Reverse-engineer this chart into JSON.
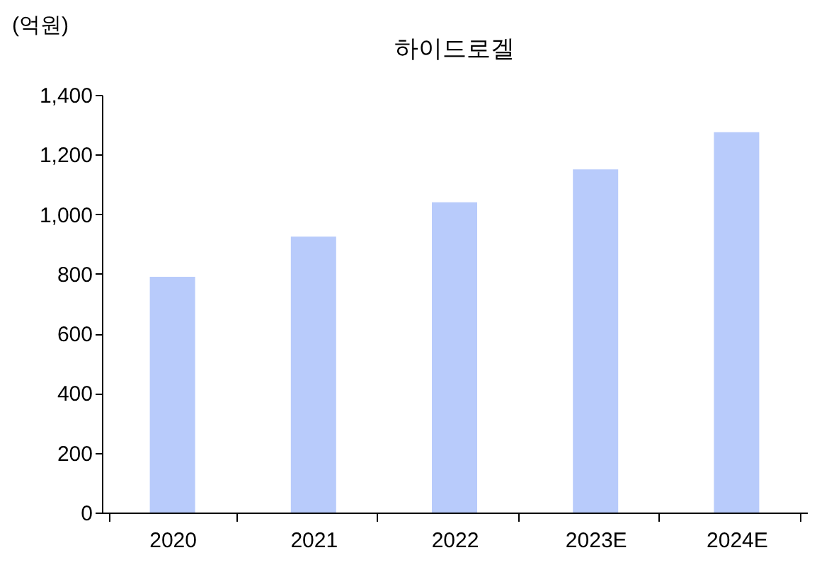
{
  "chart_data": {
    "type": "bar",
    "title": "하이드로겔",
    "ylabel": "(억원)",
    "categories": [
      "2020",
      "2021",
      "2022",
      "2023E",
      "2024E"
    ],
    "values": [
      790,
      925,
      1040,
      1150,
      1275
    ],
    "color": "#b8cbfb",
    "ylim": [
      0,
      1400
    ],
    "yticks": [
      0,
      200,
      400,
      600,
      800,
      {
        "value": 1000,
        "label": "1,000"
      },
      {
        "value": 1200,
        "label": "1,200"
      },
      {
        "value": 1400,
        "label": "1,400"
      }
    ],
    "grid": false
  }
}
